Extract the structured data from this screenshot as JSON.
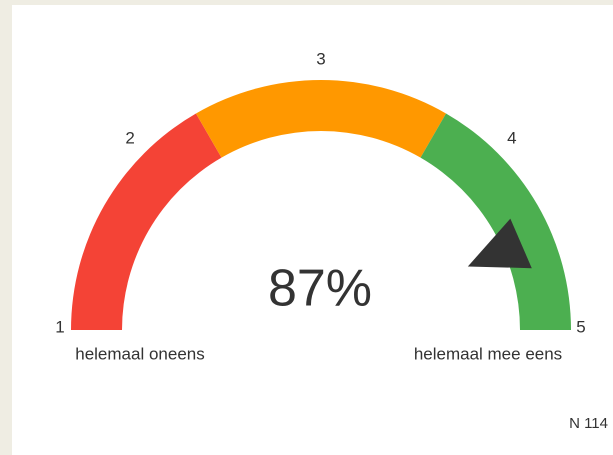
{
  "chart_data": {
    "type": "gauge",
    "value": 87,
    "value_label": "87%",
    "ylim": [
      0,
      100
    ],
    "yticks": [
      {
        "value": 0,
        "label": "1"
      },
      {
        "value": 25,
        "label": "2"
      },
      {
        "value": 50,
        "label": "3"
      },
      {
        "value": 75,
        "label": "4"
      },
      {
        "value": 100,
        "label": "5"
      }
    ],
    "bands": [
      {
        "from": 0,
        "to": 33.33,
        "color": "#f44336"
      },
      {
        "from": 33.33,
        "to": 66.67,
        "color": "#ff9800"
      },
      {
        "from": 66.67,
        "to": 100,
        "color": "#4caf50"
      }
    ],
    "pointer_color": "#333333",
    "min_label": "helemaal oneens",
    "max_label": "helemaal mee eens",
    "footnote": "N 114"
  }
}
